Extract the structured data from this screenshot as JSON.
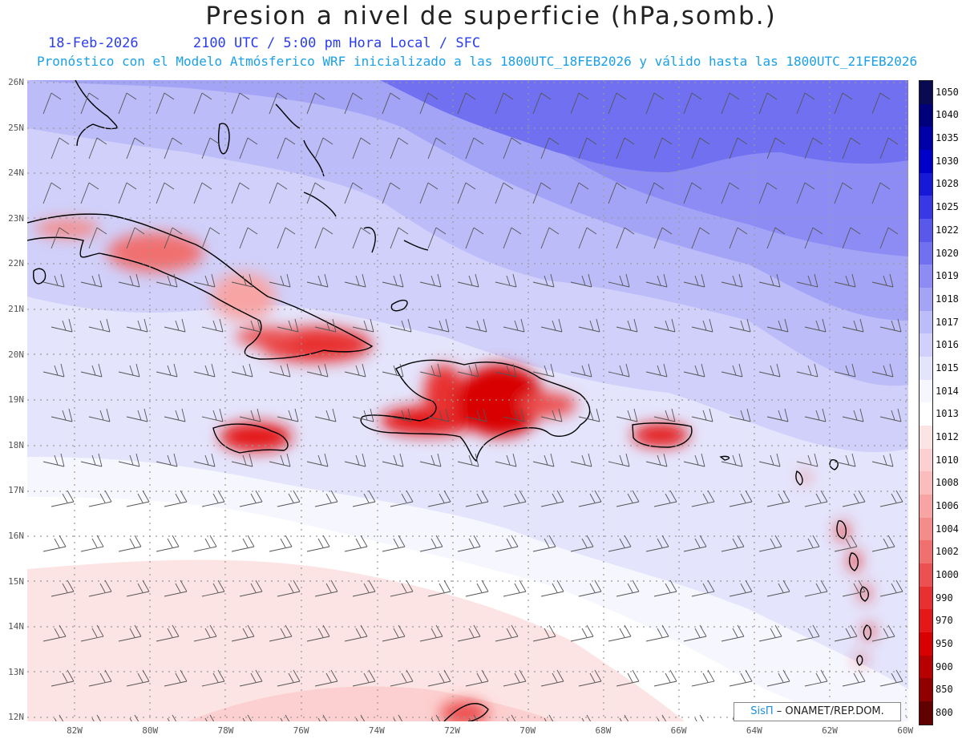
{
  "header": {
    "title": "Presion a nivel de superficie (hPa,somb.)",
    "date": "18-Feb-2026",
    "valid_time": "2100 UTC / 5:00 pm Hora Local / SFC",
    "model_info": "Pronóstico con el Modelo Atmósferico WRF inicializado a las 1800UTC_18FEB2026 y válido hasta las  1800UTC_21FEB2026"
  },
  "map": {
    "lat_labels": [
      "26N",
      "25N",
      "24N",
      "23N",
      "22N",
      "21N",
      "20N",
      "19N",
      "18N",
      "17N",
      "16N",
      "15N",
      "14N",
      "13N",
      "12N"
    ],
    "lon_labels": [
      "82W",
      "80W",
      "78W",
      "76W",
      "74W",
      "72W",
      "70W",
      "68W",
      "66W",
      "64W",
      "62W",
      "60W"
    ],
    "lat_range": [
      12,
      26
    ],
    "lon_range": [
      -83.3,
      -60.0
    ],
    "grid": "dotted"
  },
  "colorbar": {
    "labels": [
      "1050",
      "1040",
      "1035",
      "1030",
      "1028",
      "1025",
      "1022",
      "1020",
      "1019",
      "1018",
      "1017",
      "1016",
      "1015",
      "1014",
      "1013",
      "1012",
      "1010",
      "1008",
      "1006",
      "1004",
      "1002",
      "1000",
      "990",
      "970",
      "950",
      "900",
      "850",
      "800"
    ],
    "colors": [
      "#0a0a50",
      "#00007a",
      "#0000a8",
      "#0000c8",
      "#1818d8",
      "#3838e4",
      "#5858ea",
      "#7070f0",
      "#8c8cf4",
      "#a4a4f6",
      "#bcbcf8",
      "#d0d0fa",
      "#e4e4fc",
      "#f6f6fe",
      "#ffffff",
      "#fde4e4",
      "#fcd0d0",
      "#fabcbc",
      "#f8a4a4",
      "#f48c8c",
      "#f07070",
      "#ec5050",
      "#e83030",
      "#e41818",
      "#d80000",
      "#b80000",
      "#900000",
      "#600000"
    ]
  },
  "credit": {
    "brand": "SisΠ",
    "text": "– ONAMET/REP.DOM."
  }
}
